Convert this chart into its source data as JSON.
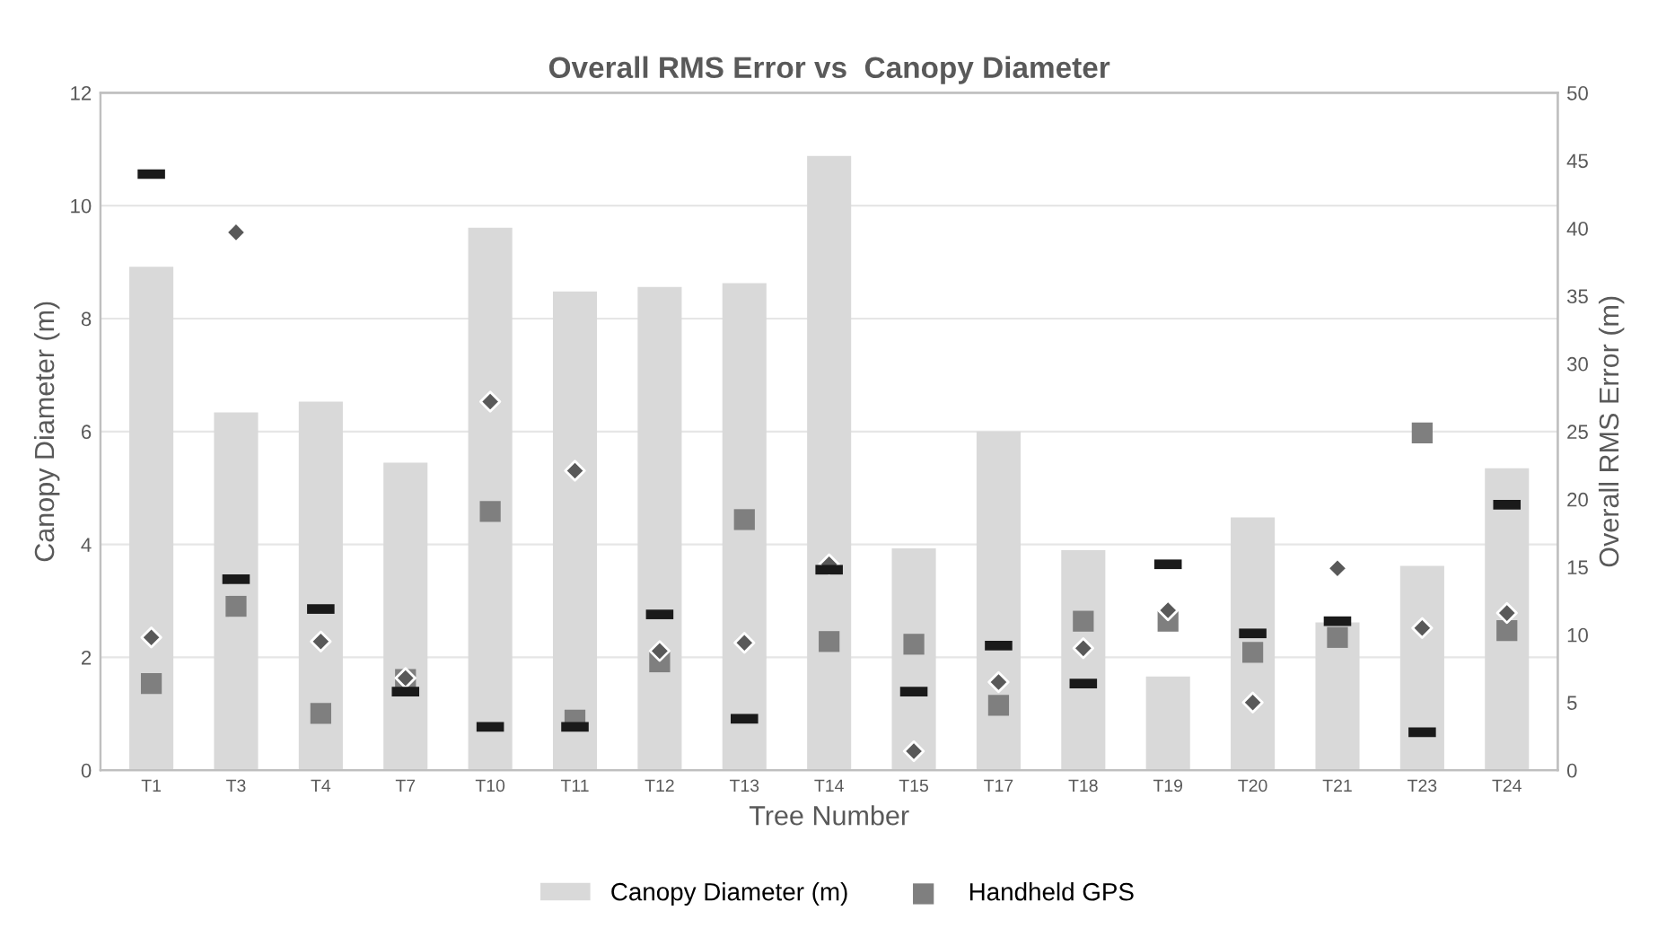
{
  "chart_data": {
    "type": "bar",
    "title": "Overall RMS Error vs  Canopy Diameter",
    "xlabel": "Tree Number",
    "ylabel": "Canopy Diameter (m)",
    "y2label": "Overall RMS Error (m)",
    "categories": [
      "T1",
      "T3",
      "T4",
      "T7",
      "T10",
      "T11",
      "T12",
      "T13",
      "T14",
      "T15",
      "T17",
      "T18",
      "T19",
      "T20",
      "T21",
      "T23",
      "T24"
    ],
    "series": [
      {
        "name": "Canopy Diameter (m)",
        "color": "#d9d9d9",
        "values": [
          8.92,
          6.34,
          6.53,
          5.45,
          9.61,
          8.48,
          8.56,
          8.63,
          10.88,
          3.93,
          6.0,
          3.9,
          1.66,
          4.48,
          2.62,
          3.62,
          5.35
        ]
      },
      {
        "name": "Handheld GPS",
        "type": "scatter",
        "axis": "y2",
        "marker": "square",
        "color": "#7f7f7f",
        "values": [
          6.4,
          12.1,
          4.2,
          6.7,
          19.1,
          3.7,
          8.0,
          18.5,
          9.5,
          9.3,
          4.8,
          11.0,
          11.0,
          8.7,
          9.8,
          24.9,
          10.3
        ]
      },
      {
        "type": "scatter",
        "axis": "y2",
        "marker": "diamond",
        "color": "#595959",
        "values": [
          9.8,
          39.7,
          9.5,
          6.8,
          27.2,
          22.1,
          8.8,
          9.4,
          15.2,
          1.4,
          6.5,
          9.0,
          11.8,
          5.0,
          14.9,
          10.5,
          11.6
        ]
      },
      {
        "type": "scatter",
        "axis": "y2",
        "color": "#1a1a1a",
        "values": [
          44.0,
          14.1,
          11.9,
          5.8,
          3.2,
          3.2,
          11.5,
          3.8,
          14.8,
          5.8,
          9.2,
          6.4,
          15.2,
          10.1,
          11.0,
          2.8,
          19.6
        ]
      }
    ],
    "ylim": [
      0,
      12
    ],
    "yticks": [
      0,
      2,
      4,
      6,
      8,
      10,
      12
    ],
    "y2lim": [
      0,
      50
    ],
    "y2ticks": [
      0,
      5,
      10,
      15,
      20,
      25,
      30,
      35,
      40,
      45,
      50
    ],
    "grid": "y",
    "legend": "bottom"
  }
}
